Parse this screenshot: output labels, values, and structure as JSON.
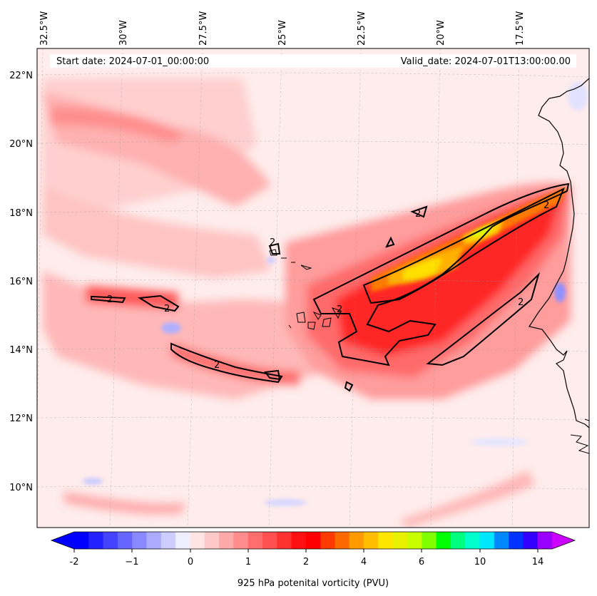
{
  "header": {
    "start_date": "Start date: 2024-07-01_00:00:00",
    "valid_date": "Valid_date: 2024-07-01T13:00:00.00"
  },
  "axes": {
    "lon_labels": [
      "32.5°W",
      "30°W",
      "27.5°W",
      "25°W",
      "22.5°W",
      "20°W",
      "17.5°W"
    ],
    "lat_labels": [
      "22°N",
      "20°N",
      "18°N",
      "16°N",
      "14°N",
      "12°N",
      "10°N"
    ]
  },
  "colorbar": {
    "label": "925 hPa potenital vorticity (PVU)",
    "tick_labels": [
      "-2",
      "−1",
      "0",
      "1",
      "2",
      "4",
      "6",
      "10",
      "14"
    ],
    "colors": [
      "#0000ff",
      "#2222ff",
      "#4444ff",
      "#6666ff",
      "#8888ff",
      "#aaaaff",
      "#ccccff",
      "#eeeeff",
      "#ffe4e4",
      "#ffc8c8",
      "#ffaaaa",
      "#ff8c8c",
      "#ff6e6e",
      "#ff5050",
      "#ff3030",
      "#ff1010",
      "#ff0000",
      "#ff3a00",
      "#ff6a00",
      "#ff9a00",
      "#ffbf00",
      "#ffe600",
      "#e6f000",
      "#c8ff00",
      "#7fff00",
      "#00ff00",
      "#00ff7f",
      "#00ffcc",
      "#00e6ff",
      "#0088ff",
      "#0033ff",
      "#3300ff",
      "#9900ff"
    ],
    "under_color": "#0000ff",
    "over_color": "#cc00ff"
  },
  "contour": {
    "level_label": "2"
  }
}
